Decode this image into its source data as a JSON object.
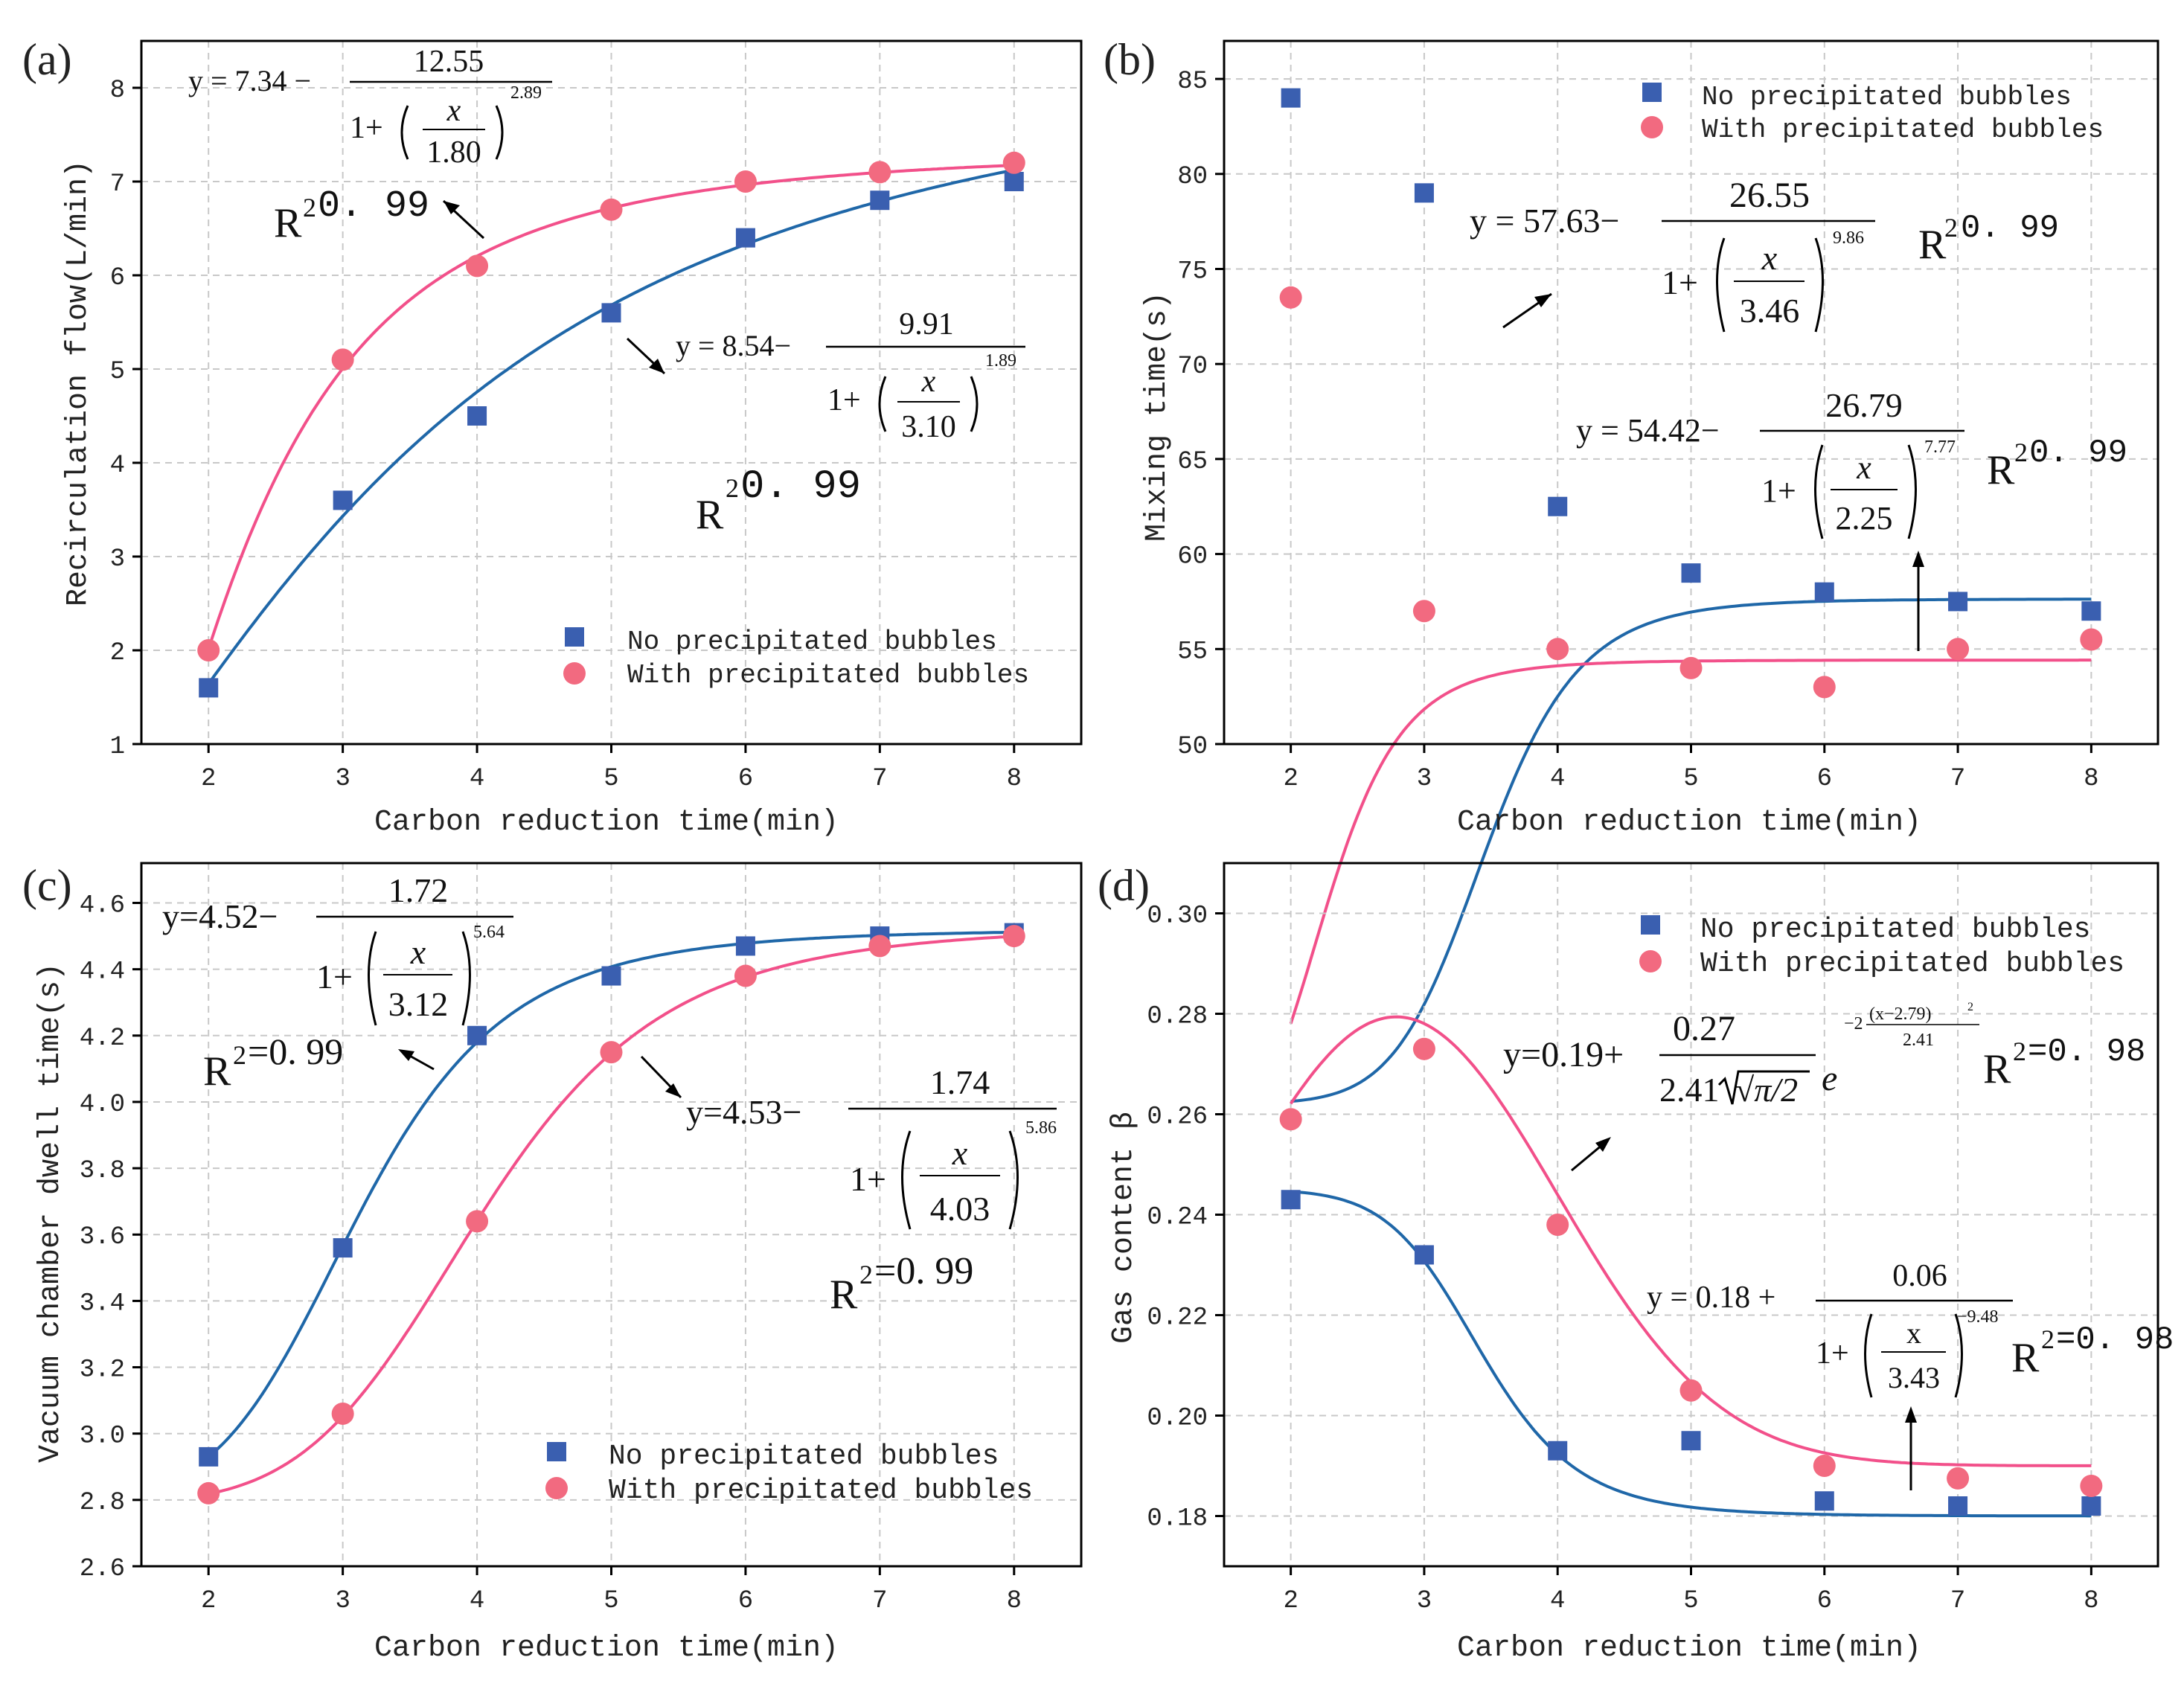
{
  "colors": {
    "no_bubbles": "#3a5fb0",
    "no_bubbles_fit": "#1f67a8",
    "with_bubbles": "#f26a80",
    "with_bubbles_fit": "#f2508a"
  },
  "legend": {
    "no_bubbles": "No precipitated bubbles",
    "with_bubbles": "With precipitated bubbles"
  },
  "chart_data": [
    {
      "panel": "(a)",
      "type": "scatter",
      "xlabel": "Carbon reduction time(min)",
      "ylabel": "Recirculation flow(L/min)",
      "xlim": [
        1.5,
        8.5
      ],
      "ylim": [
        1,
        8.5
      ],
      "xticks": [
        2,
        3,
        4,
        5,
        6,
        7,
        8
      ],
      "yticks": [
        1,
        2,
        3,
        4,
        5,
        6,
        7,
        8
      ],
      "ytick_decimals": 0,
      "legend_position": "bottom-right",
      "x": [
        2,
        3,
        4,
        5,
        6,
        7,
        8
      ],
      "series": [
        {
          "name": "No precipitated bubbles",
          "values": [
            1.6,
            3.6,
            4.5,
            5.6,
            6.4,
            6.8,
            7.0
          ]
        },
        {
          "name": "With precipitated bubbles",
          "values": [
            2.0,
            5.1,
            6.1,
            6.7,
            7.0,
            7.1,
            7.2
          ]
        }
      ],
      "fits": [
        {
          "series": "No precipitated bubbles",
          "model": "logistic",
          "A2": 8.54,
          "A": 9.91,
          "x0": 3.1,
          "p": 1.89
        },
        {
          "series": "With precipitated bubbles",
          "model": "logistic",
          "A2": 7.34,
          "A": 12.55,
          "x0": 1.8,
          "p": 2.89
        }
      ],
      "annotations": {
        "eq_with": {
          "prefix": "y = 7.34 −",
          "num": "12.55",
          "den": "1.80",
          "pow": "2.89"
        },
        "eq_no": {
          "prefix": "y = 8.54−",
          "num": "9.91",
          "den": "3.10",
          "pow": "1.89"
        },
        "r2_with": "0. 99",
        "r2_no": "0. 99"
      }
    },
    {
      "panel": "(b)",
      "type": "scatter",
      "xlabel": "Carbon reduction time(min)",
      "ylabel": "Mixing time(s)",
      "xlim": [
        1.5,
        8.5
      ],
      "ylim": [
        50,
        87
      ],
      "xticks": [
        2,
        3,
        4,
        5,
        6,
        7,
        8
      ],
      "yticks": [
        50,
        55,
        60,
        65,
        70,
        75,
        80,
        85
      ],
      "ytick_decimals": 0,
      "legend_position": "top-right",
      "x": [
        2,
        3,
        4,
        5,
        6,
        7,
        8
      ],
      "series": [
        {
          "name": "No precipitated bubbles",
          "values": [
            84.0,
            79.0,
            62.5,
            59.0,
            58.0,
            57.5,
            57.0
          ]
        },
        {
          "name": "With precipitated bubbles",
          "values": [
            73.5,
            57.0,
            55.0,
            54.0,
            53.0,
            55.0,
            55.5
          ]
        }
      ],
      "fits": [
        {
          "series": "No precipitated bubbles",
          "model": "logistic",
          "A2": 57.63,
          "A": 26.55,
          "x0": 3.46,
          "p": 9.86
        },
        {
          "series": "With precipitated bubbles",
          "model": "logistic",
          "A2": 54.42,
          "A": 26.79,
          "x0": 2.25,
          "p": 7.77
        }
      ],
      "annotations": {
        "eq_no": {
          "prefix": "y = 57.63−",
          "num": "26.55",
          "den": "3.46",
          "pow": "9.86"
        },
        "eq_with": {
          "prefix": "y = 54.42−",
          "num": "26.79",
          "den": "2.25",
          "pow": "7.77"
        },
        "r2_no": "0. 99",
        "r2_with": "0. 99"
      }
    },
    {
      "panel": "(c)",
      "type": "scatter",
      "xlabel": "Carbon reduction time(min)",
      "ylabel": "Vacuum chamber dwell time(s)",
      "xlim": [
        1.5,
        8.5
      ],
      "ylim": [
        2.6,
        4.72
      ],
      "xticks": [
        2,
        3,
        4,
        5,
        6,
        7,
        8
      ],
      "yticks": [
        2.6,
        2.8,
        3.0,
        3.2,
        3.4,
        3.6,
        3.8,
        4.0,
        4.2,
        4.4,
        4.6
      ],
      "ytick_decimals": 1,
      "legend_position": "bottom-right",
      "x": [
        2,
        3,
        4,
        5,
        6,
        7,
        8
      ],
      "series": [
        {
          "name": "No precipitated bubbles",
          "values": [
            2.93,
            3.56,
            4.2,
            4.38,
            4.47,
            4.5,
            4.51
          ]
        },
        {
          "name": "With precipitated bubbles",
          "values": [
            2.82,
            3.06,
            3.64,
            4.15,
            4.38,
            4.47,
            4.5
          ]
        }
      ],
      "fits": [
        {
          "series": "No precipitated bubbles",
          "model": "logistic",
          "A2": 4.52,
          "A": 1.72,
          "x0": 3.12,
          "p": 5.64
        },
        {
          "series": "With precipitated bubbles",
          "model": "logistic",
          "A2": 4.53,
          "A": 1.74,
          "x0": 4.03,
          "p": 5.86
        }
      ],
      "annotations": {
        "eq_no": {
          "prefix": "y=4.52−",
          "num": "1.72",
          "den": "3.12",
          "pow": "5.64"
        },
        "eq_with": {
          "prefix": "y=4.53−",
          "num": "1.74",
          "den": "4.03",
          "pow": "5.86"
        },
        "r2_no": "=0. 99",
        "r2_with": "=0. 99"
      }
    },
    {
      "panel": "(d)",
      "type": "scatter",
      "xlabel": "Carbon reduction time(min)",
      "ylabel": "Gas content β",
      "xlim": [
        1.5,
        8.5
      ],
      "ylim": [
        0.17,
        0.31
      ],
      "xticks": [
        2,
        3,
        4,
        5,
        6,
        7,
        8
      ],
      "yticks": [
        0.18,
        0.2,
        0.22,
        0.24,
        0.26,
        0.28,
        0.3
      ],
      "ytick_decimals": 2,
      "legend_position": "top-right",
      "x": [
        2,
        3,
        4,
        5,
        6,
        7,
        8
      ],
      "series": [
        {
          "name": "No precipitated bubbles",
          "values": [
            0.243,
            0.232,
            0.193,
            0.195,
            0.183,
            0.182,
            0.182
          ]
        },
        {
          "name": "With precipitated bubbles",
          "values": [
            0.259,
            0.273,
            0.238,
            0.205,
            0.19,
            0.1875,
            0.186
          ]
        }
      ],
      "fits": [
        {
          "series": "No precipitated bubbles",
          "model": "logistic",
          "A2": 0.18,
          "A": 0.06,
          "x0": 3.43,
          "p": 9.48,
          "A1": 0.245
        },
        {
          "series": "With precipitated bubbles",
          "model": "gauss",
          "y0": 0.19,
          "A": 0.27,
          "w": 2.41,
          "xc": 2.79
        }
      ],
      "annotations": {
        "eq_with": {
          "prefix": "y=0.19+",
          "num": "0.27",
          "den": "2.41",
          "den_rest": "√π/2",
          "e": "e",
          "exp_num": "(x−2.79)",
          "exp_pre": "−2",
          "exp_den": "2.41",
          "sq": "2"
        },
        "eq_no": {
          "prefix": "y = 0.18 +",
          "num": "0.06",
          "den": "3.43",
          "pow": "−9.48"
        },
        "r2_with": "=0. 98",
        "r2_no": "=0. 98"
      }
    }
  ]
}
